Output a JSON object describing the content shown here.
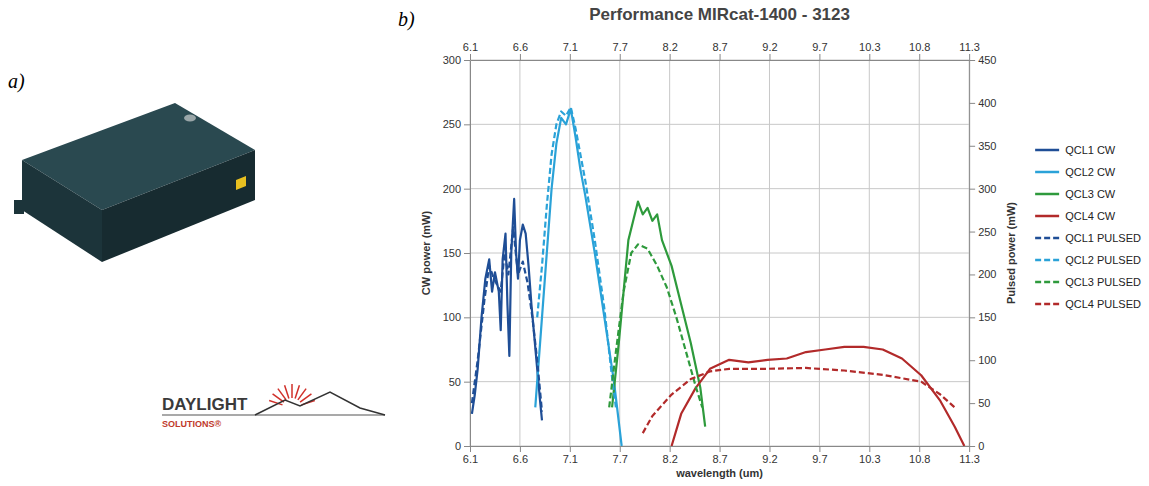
{
  "figure": {
    "panel_labels": [
      "a)",
      "b)"
    ],
    "logo_text": [
      "DAYLIGHT",
      "SOLUTIONS®"
    ]
  },
  "chart_data": {
    "type": "line",
    "title": "Performance MIRcat-1400 - 3123",
    "x_label": "wavelength (um)",
    "y_label": "CW power (mW)",
    "y2_label": "Pulsed power (mW)",
    "xlim": [
      6.1,
      11.3
    ],
    "xticks": [
      6.1,
      {
        "value": 6.62,
        "label": "6.6"
      },
      {
        "value": 7.14,
        "label": "7.1"
      },
      {
        "value": 7.66,
        "label": "7.7"
      },
      {
        "value": 8.18,
        "label": "8.2"
      },
      8.7,
      {
        "value": 9.22,
        "label": "9.2"
      },
      {
        "value": 9.74,
        "label": "9.7"
      },
      {
        "value": 10.26,
        "label": "10.3"
      },
      {
        "value": 10.78,
        "label": "10.8"
      },
      11.3
    ],
    "ylim": [
      0,
      300
    ],
    "yticks": [
      0,
      50,
      100,
      150,
      200,
      250,
      300
    ],
    "y2lim": [
      0,
      450
    ],
    "y2ticks": [
      0,
      50,
      100,
      150,
      200,
      250,
      300,
      350,
      400,
      450
    ],
    "grid": true,
    "legend": "right",
    "series": [
      {
        "name": "QCL1 CW",
        "color": "#1f4e96",
        "line_style": "solid",
        "axis": "y",
        "x": [
          6.12,
          6.15,
          6.18,
          6.22,
          6.26,
          6.3,
          6.33,
          6.36,
          6.4,
          6.42,
          6.44,
          6.47,
          6.49,
          6.51,
          6.53,
          6.56,
          6.58,
          6.6,
          6.62,
          6.65,
          6.68,
          6.71,
          6.74,
          6.77,
          6.8,
          6.83,
          6.85
        ],
        "values": [
          25,
          40,
          60,
          100,
          130,
          145,
          120,
          135,
          120,
          90,
          145,
          165,
          110,
          70,
          150,
          192,
          150,
          130,
          160,
          172,
          165,
          140,
          110,
          85,
          60,
          35,
          20
        ]
      },
      {
        "name": "QCL2 CW",
        "color": "#2aa2d8",
        "line_style": "solid",
        "axis": "y",
        "x": [
          6.78,
          6.85,
          6.9,
          6.95,
          7.0,
          7.05,
          7.1,
          7.15,
          7.2,
          7.25,
          7.3,
          7.4,
          7.5,
          7.6,
          7.68
        ],
        "values": [
          30,
          100,
          150,
          200,
          235,
          255,
          250,
          262,
          240,
          215,
          195,
          150,
          100,
          50,
          0
        ]
      },
      {
        "name": "QCL3 CW",
        "color": "#2e9a3c",
        "line_style": "solid",
        "axis": "y",
        "x": [
          7.58,
          7.65,
          7.7,
          7.75,
          7.8,
          7.85,
          7.9,
          7.95,
          8.0,
          8.05,
          8.1,
          8.2,
          8.3,
          8.4,
          8.5,
          8.55
        ],
        "values": [
          30,
          80,
          120,
          160,
          175,
          190,
          180,
          185,
          175,
          180,
          160,
          140,
          110,
          80,
          45,
          15
        ]
      },
      {
        "name": "QCL4 CW",
        "color": "#b22a2a",
        "line_style": "solid",
        "axis": "y",
        "x": [
          8.2,
          8.3,
          8.45,
          8.6,
          8.8,
          9.0,
          9.2,
          9.4,
          9.6,
          9.8,
          10.0,
          10.2,
          10.4,
          10.6,
          10.8,
          11.0,
          11.15,
          11.25
        ],
        "values": [
          0,
          25,
          45,
          60,
          67,
          65,
          67,
          68,
          73,
          75,
          77,
          77,
          75,
          68,
          55,
          35,
          15,
          0
        ]
      },
      {
        "name": "QCL1 PULSED",
        "color": "#1f4e96",
        "line_style": "dashed",
        "axis": "y2",
        "x": [
          6.12,
          6.18,
          6.25,
          6.3,
          6.35,
          6.42,
          6.46,
          6.5,
          6.55,
          6.6,
          6.65,
          6.7,
          6.75,
          6.8,
          6.85
        ],
        "values": [
          50,
          100,
          170,
          210,
          195,
          180,
          225,
          200,
          255,
          200,
          215,
          190,
          150,
          100,
          40
        ]
      },
      {
        "name": "QCL2 PULSED",
        "color": "#2aa2d8",
        "line_style": "dashed",
        "axis": "y2",
        "x": [
          6.8,
          6.85,
          6.9,
          6.95,
          7.0,
          7.05,
          7.1,
          7.15,
          7.2,
          7.3,
          7.4,
          7.5,
          7.58,
          7.62
        ],
        "values": [
          150,
          210,
          280,
          340,
          375,
          390,
          385,
          395,
          370,
          310,
          240,
          160,
          80,
          45
        ]
      },
      {
        "name": "QCL3 PULSED",
        "color": "#2e9a3c",
        "line_style": "dashed",
        "axis": "y2",
        "x": [
          7.55,
          7.62,
          7.7,
          7.78,
          7.85,
          7.95,
          8.05,
          8.15,
          8.25,
          8.35,
          8.45,
          8.52
        ],
        "values": [
          45,
          110,
          180,
          225,
          235,
          230,
          210,
          185,
          150,
          110,
          70,
          45
        ]
      },
      {
        "name": "QCL4 PULSED",
        "color": "#b22a2a",
        "line_style": "dashed",
        "axis": "y2",
        "x": [
          7.9,
          8.0,
          8.2,
          8.4,
          8.6,
          8.8,
          9.2,
          9.6,
          10.0,
          10.4,
          10.8,
          11.0,
          11.15
        ],
        "values": [
          15,
          35,
          60,
          78,
          87,
          90,
          90,
          91,
          88,
          83,
          75,
          60,
          45
        ]
      }
    ]
  }
}
